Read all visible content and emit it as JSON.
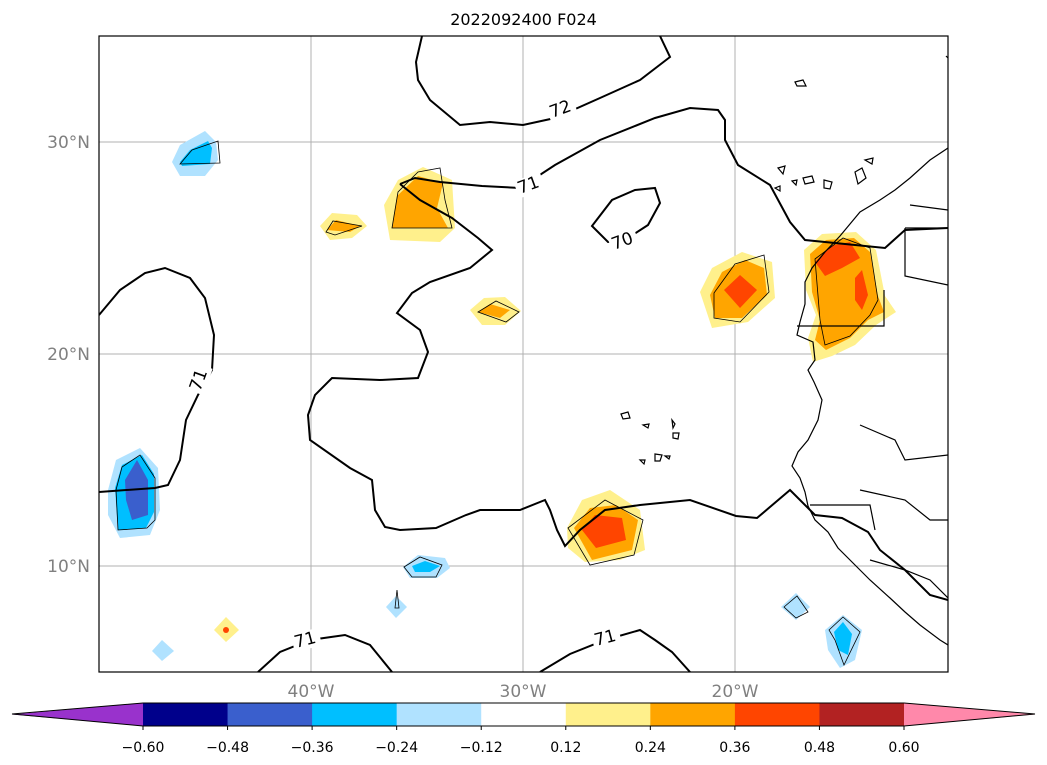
{
  "title": "2022092400 F024",
  "map": {
    "lon_range": [
      -50,
      -10
    ],
    "lat_range": [
      5,
      35
    ],
    "lat_ticks": [
      {
        "value": 30,
        "label": "30°N"
      },
      {
        "value": 20,
        "label": "20°N"
      },
      {
        "value": 10,
        "label": "10°N"
      }
    ],
    "lon_ticks": [
      {
        "value": -40,
        "label": "40°W"
      },
      {
        "value": -30,
        "label": "30°W"
      },
      {
        "value": -20,
        "label": "20°W"
      }
    ],
    "gridlines": true,
    "contour_labels": [
      "72",
      "71",
      "70",
      "71",
      "71",
      "71"
    ]
  },
  "colorbar": {
    "levels": [
      "−0.60",
      "−0.48",
      "−0.36",
      "−0.24",
      "−0.12",
      "0.12",
      "0.24",
      "0.36",
      "0.48",
      "0.60"
    ],
    "colors": [
      "#9932cc",
      "#00008b",
      "#3a5fcd",
      "#00bfff",
      "#b0e2ff",
      "#ffffff",
      "#fff08c",
      "#ffa500",
      "#ff4500",
      "#b22222",
      "#ff88aa"
    ]
  }
}
